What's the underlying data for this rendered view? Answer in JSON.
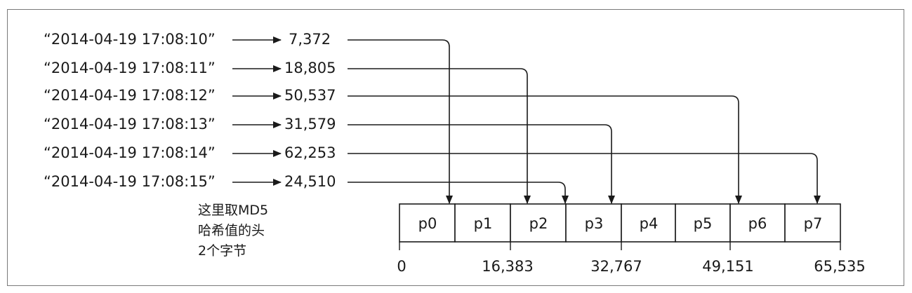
{
  "rows": [
    {
      "timestamp": "“2014-04-19 17:08:10”",
      "hash": "7,372",
      "target": 0
    },
    {
      "timestamp": "“2014-04-19 17:08:11”",
      "hash": "18,805",
      "target": 2
    },
    {
      "timestamp": "“2014-04-19 17:08:12”",
      "hash": "50,537",
      "target": 6
    },
    {
      "timestamp": "“2014-04-19 17:08:13”",
      "hash": "31,579",
      "target": 3
    },
    {
      "timestamp": "“2014-04-19 17:08:14”",
      "hash": "62,253",
      "target": 7
    },
    {
      "timestamp": "“2014-04-19 17:08:15”",
      "hash": "24,510",
      "target": 2
    }
  ],
  "partitions": [
    "p0",
    "p1",
    "p2",
    "p3",
    "p4",
    "p5",
    "p6",
    "p7"
  ],
  "axis_labels": [
    "0",
    "16,383",
    "32,767",
    "49,151",
    "65,535"
  ],
  "note": [
    "这里取MD5",
    "哈希值的头",
    "2个字节"
  ]
}
